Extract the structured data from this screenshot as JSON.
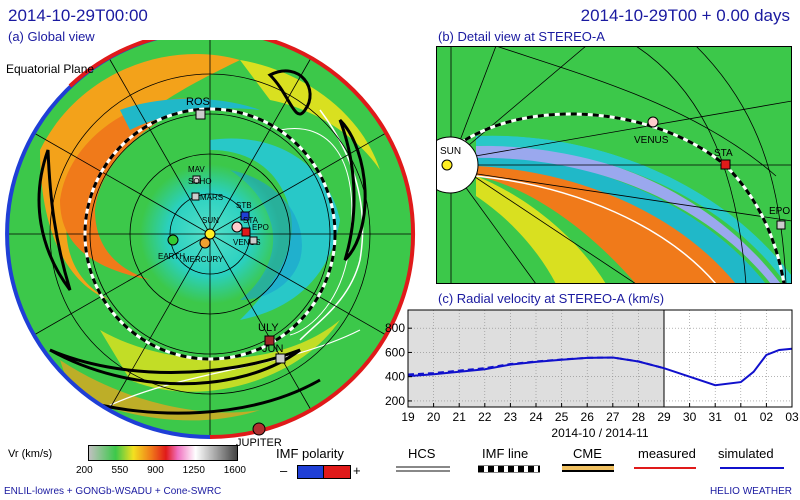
{
  "header": {
    "left_timestamp": "2014-10-29T00:00",
    "right_timestamp": "2014-10-29T00 + 0.00 days"
  },
  "panels": {
    "global": {
      "label": "(a) Global view",
      "plane_label": "Equatorial Plane",
      "bodies": [
        {
          "name": "ROS",
          "kind": "spacecraft",
          "color": "#cccccc"
        },
        {
          "name": "MAV",
          "kind": "spacecraft",
          "color": "#cccccc"
        },
        {
          "name": "SOHO",
          "kind": "spacecraft",
          "color": "#cccccc"
        },
        {
          "name": "MARS",
          "kind": "planet",
          "color": "#cccccc"
        },
        {
          "name": "STB",
          "kind": "spacecraft",
          "color": "#1f3fd6"
        },
        {
          "name": "STA",
          "kind": "spacecraft",
          "color": "#e01a1a"
        },
        {
          "name": "SUN",
          "kind": "star",
          "color": "#ffee22"
        },
        {
          "name": "EARTH",
          "kind": "planet",
          "color": "#33cc33"
        },
        {
          "name": "MERCURY",
          "kind": "planet",
          "color": "#f0a030"
        },
        {
          "name": "VENUS",
          "kind": "planet",
          "color": "#ffcccc"
        },
        {
          "name": "EPO",
          "kind": "spacecraft",
          "color": "#cccccc"
        },
        {
          "name": "ULY",
          "kind": "spacecraft",
          "color": "#a02828"
        },
        {
          "name": "JUN",
          "kind": "spacecraft",
          "color": "#cccccc"
        },
        {
          "name": "JUPITER",
          "kind": "planet",
          "color": "#b03030"
        }
      ]
    },
    "detail": {
      "label": "(b) Detail view at STEREO-A",
      "bodies": [
        {
          "name": "SUN",
          "color": "#ffee22"
        },
        {
          "name": "VENUS",
          "color": "#ffcccc"
        },
        {
          "name": "STA",
          "color": "#e01a1a"
        },
        {
          "name": "EPO",
          "color": "#cccccc"
        }
      ]
    },
    "radial": {
      "label": "(c) Radial velocity at STEREO-A (km/s)",
      "xlabel": "2014-10 / 2014-11"
    }
  },
  "chart_data": {
    "type": "line",
    "title": "(c) Radial velocity at STEREO-A (km/s)",
    "xlabel": "2014-10 / 2014-11",
    "ylabel": "",
    "x_tick_labels": [
      "19",
      "20",
      "21",
      "22",
      "23",
      "24",
      "25",
      "26",
      "27",
      "28",
      "29",
      "30",
      "31",
      "01",
      "02",
      "03"
    ],
    "y_ticks": [
      200,
      400,
      600,
      800
    ],
    "ylim": [
      150,
      950
    ],
    "xlim": [
      "2014-10-19",
      "2014-11-03"
    ],
    "current_time": "2014-10-29",
    "shaded_past": true,
    "grid": true,
    "series": [
      {
        "name": "simulated",
        "color": "#1010cc",
        "style": "solid",
        "x": [
          "2014-10-19",
          "2014-10-20",
          "2014-10-21",
          "2014-10-22",
          "2014-10-23",
          "2014-10-24",
          "2014-10-25",
          "2014-10-26",
          "2014-10-27",
          "2014-10-28",
          "2014-10-29",
          "2014-10-30",
          "2014-10-31",
          "2014-11-01",
          "2014-11-01T12",
          "2014-11-02",
          "2014-11-02T12",
          "2014-11-03"
        ],
        "values": [
          405,
          420,
          440,
          462,
          500,
          522,
          540,
          555,
          558,
          525,
          470,
          400,
          330,
          355,
          440,
          580,
          620,
          630
        ]
      },
      {
        "name": "simulated (dashed)",
        "color": "#1010cc",
        "style": "dashed",
        "x": [
          "2014-10-19",
          "2014-10-20",
          "2014-10-21",
          "2014-10-22",
          "2014-10-23",
          "2014-10-24",
          "2014-10-25",
          "2014-10-26",
          "2014-10-27",
          "2014-10-28",
          "2014-10-29"
        ],
        "values": [
          418,
          430,
          450,
          470,
          505,
          525,
          542,
          556,
          558,
          526,
          470
        ]
      }
    ]
  },
  "colorbar": {
    "label": "Vr (km/s)",
    "ticks": [
      "200",
      "550",
      "900",
      "1250",
      "1600"
    ]
  },
  "legend": {
    "imf_polarity": "IMF polarity",
    "minus": "–",
    "plus": "+",
    "items": [
      {
        "label": "HCS",
        "color": "#888888"
      },
      {
        "label": "IMF line",
        "color": "#000000"
      },
      {
        "label": "CME",
        "color": "#f0c060"
      },
      {
        "label": "measured",
        "color": "#e01a1a"
      },
      {
        "label": "simulated",
        "color": "#1010cc"
      }
    ]
  },
  "footer": {
    "left": "ENLIL-lowres + GONGb-WSADU + Cone-SWRC",
    "right": "HELIO WEATHER"
  }
}
